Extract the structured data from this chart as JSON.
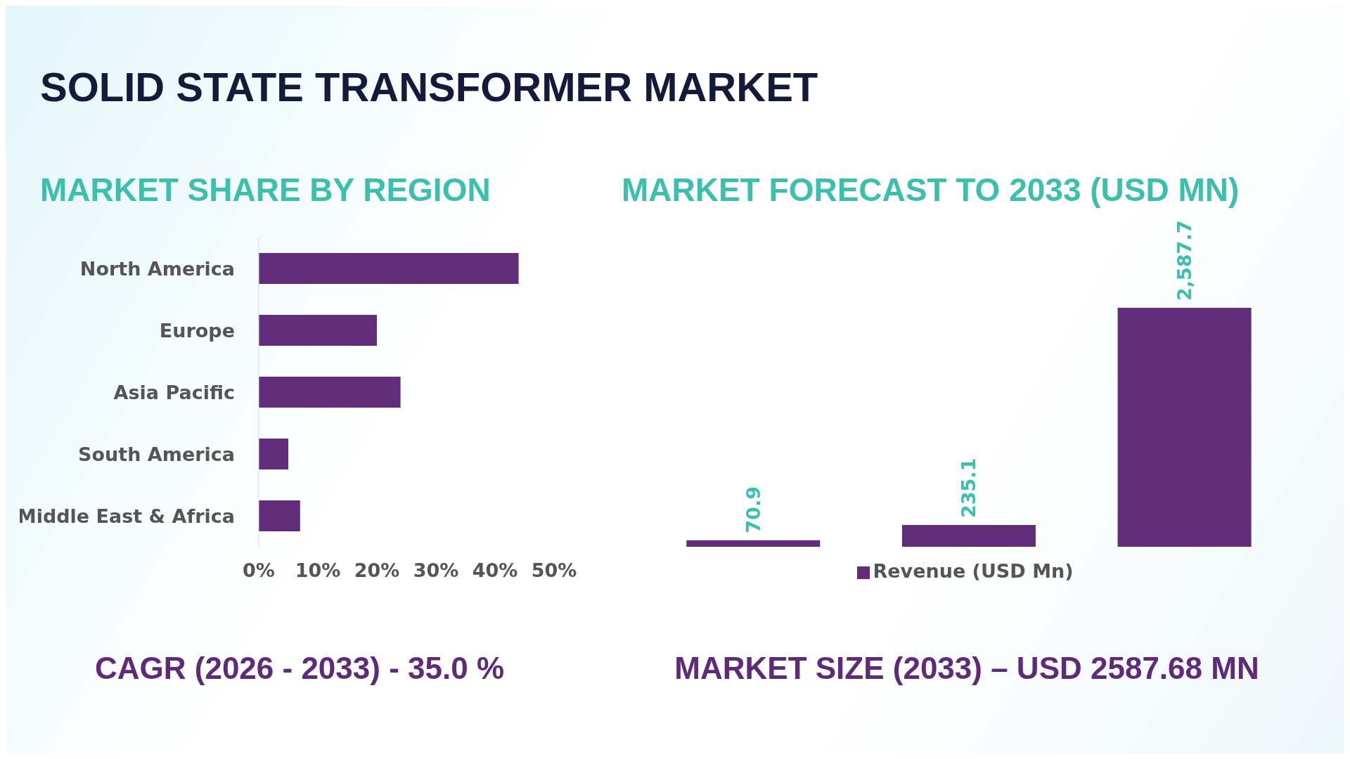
{
  "chart_data": [
    {
      "type": "other",
      "title": "SOLID STATE TRANSFORMER MARKET"
    },
    {
      "type": "bar",
      "orientation": "horizontal",
      "title": "MARKET SHARE BY REGION",
      "categories": [
        "North America",
        "Europe",
        "Asia Pacific",
        "South America",
        "Middle East & Africa"
      ],
      "values": [
        44,
        20,
        24,
        5,
        7
      ],
      "color": "#612c7a",
      "xlim": [
        0,
        50
      ],
      "xticks": [
        {
          "value": 0,
          "label": "0%"
        },
        {
          "value": 10,
          "label": "10%"
        },
        {
          "value": 20,
          "label": "20%"
        },
        {
          "value": 30,
          "label": "30%"
        },
        {
          "value": 40,
          "label": "40%"
        },
        {
          "value": 50,
          "label": "50%"
        }
      ],
      "grid": false,
      "legend": false,
      "annotations": [
        "CAGR (2026 - 2033) - 35.0 %"
      ]
    },
    {
      "type": "bar",
      "title": "MARKET FORECAST TO 2033 (USD MN)",
      "categories": [
        null,
        null,
        null
      ],
      "series": [
        {
          "name": "Revenue (USD Mn)",
          "color": "#612c7a",
          "values": [
            70.9,
            235.1,
            2587.7
          ],
          "value_labels": [
            "70.9",
            "235.1",
            "2,587.7"
          ]
        }
      ],
      "legend": "bottom",
      "grid": false,
      "annotations": [
        "MARKET SIZE (2033) – USD 2587.68 MN"
      ]
    }
  ]
}
